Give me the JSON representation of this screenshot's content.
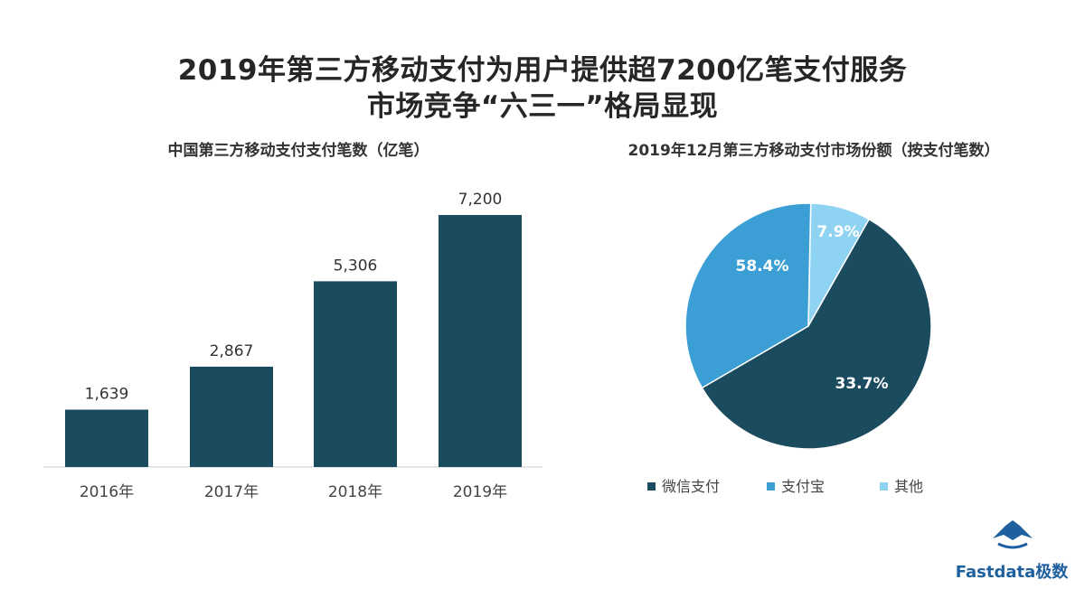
{
  "title_line1": "2019年第三方移动支付为用户提供超7200亿笔支付服务",
  "title_line2": "市场竞争“六三一”格局显现",
  "brand": {
    "name": "Fastdata极数"
  },
  "colors": {
    "dark": "#1b4b5e",
    "mid": "#3b9fd5",
    "light": "#8fd3f3"
  },
  "chart_data": [
    {
      "type": "bar",
      "title": "中国第三方移动支付支付笔数（亿笔）",
      "categories": [
        "2016年",
        "2017年",
        "2018年",
        "2019年"
      ],
      "values": [
        1639,
        2867,
        5306,
        7200
      ],
      "value_labels": [
        "1,639",
        "2,867",
        "5,306",
        "7,200"
      ],
      "ylim": [
        0,
        7200
      ],
      "grid": false
    },
    {
      "type": "pie",
      "title": "2019年12月第三方移动支付市场份额（按支付笔数）",
      "slices": [
        {
          "label": "微信支付",
          "value": 58.4,
          "text": "58.4%",
          "color": "#1b4b5e"
        },
        {
          "label": "支付宝",
          "value": 33.7,
          "text": "33.7%",
          "color": "#3b9fd5"
        },
        {
          "label": "其他",
          "value": 7.9,
          "text": "7.9%",
          "color": "#8fd3f3"
        }
      ],
      "legend_position": "bottom"
    }
  ]
}
